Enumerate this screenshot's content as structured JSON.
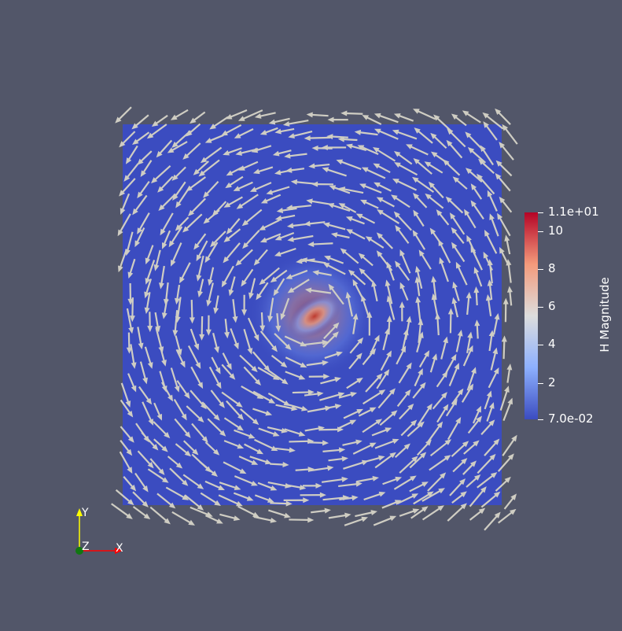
{
  "colorbar": {
    "title": "H Magnitude",
    "range": [
      0.07,
      11
    ],
    "ticks": [
      {
        "label": "1.1e+01",
        "value": 11
      },
      {
        "label": "10",
        "value": 10
      },
      {
        "label": "8",
        "value": 8
      },
      {
        "label": "6",
        "value": 6
      },
      {
        "label": "4",
        "value": 4
      },
      {
        "label": "2",
        "value": 2
      },
      {
        "label": "7.0e-02",
        "value": 0.07
      }
    ],
    "colors": [
      "#3b4cc0",
      "#8db0fe",
      "#dddddd",
      "#f49a7b",
      "#b40426"
    ]
  },
  "axes": {
    "y_label": "Y",
    "z_label": "Z",
    "x_label": "X",
    "y_color": "#ffff00",
    "x_color": "#ff0000",
    "z_color": "#00aa00"
  },
  "colors": {
    "background": "#525669",
    "field_base": "#3b4cc0",
    "glyph": "#cfcdc3"
  }
}
